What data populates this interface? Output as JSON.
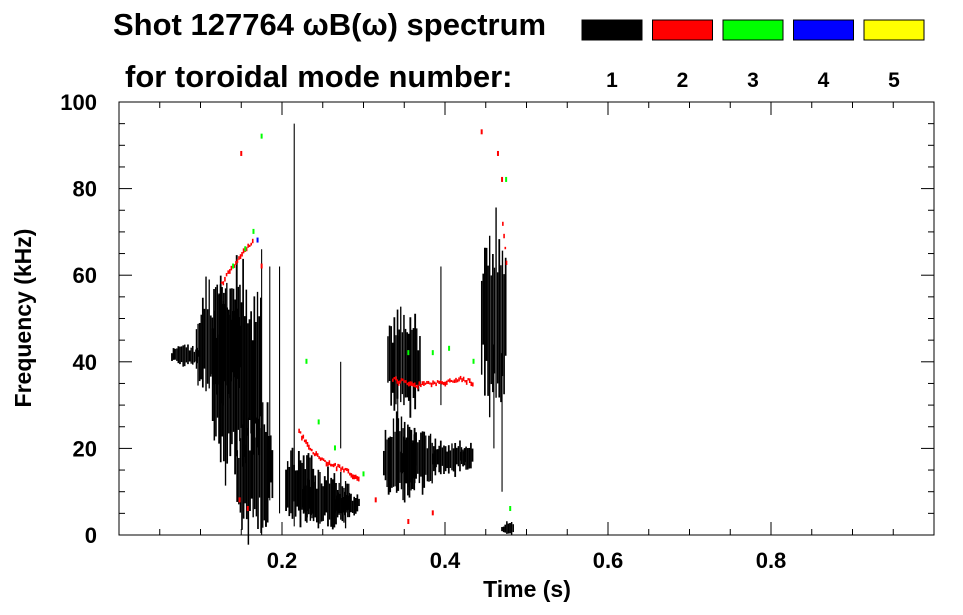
{
  "chart_data": {
    "type": "scatter",
    "title_line1": "Shot 127764 ωB(ω) spectrum",
    "title_line2": "for toroidal mode number:",
    "xlabel": "Time (s)",
    "ylabel": "Frequency (kHz)",
    "xlim": [
      0.0,
      1.0
    ],
    "ylim": [
      0,
      100
    ],
    "x_ticks": [
      0.2,
      0.4,
      0.6,
      0.8
    ],
    "x_tick_labels": [
      "0.2",
      "0.4",
      "0.6",
      "0.8"
    ],
    "y_ticks": [
      0,
      20,
      40,
      60,
      80,
      100
    ],
    "y_tick_labels": [
      "0",
      "20",
      "40",
      "60",
      "80",
      "100"
    ],
    "legend": [
      {
        "label": "1",
        "color": "#000000"
      },
      {
        "label": "2",
        "color": "#ff0000"
      },
      {
        "label": "3",
        "color": "#00ff00"
      },
      {
        "label": "4",
        "color": "#0000ff"
      },
      {
        "label": "5",
        "color": "#ffff00"
      }
    ],
    "series": [
      {
        "name": "n=1",
        "color": "#000000",
        "blobs": [
          {
            "t0": 0.065,
            "t1": 0.1,
            "f0": 39,
            "f1": 44
          },
          {
            "t0": 0.095,
            "t1": 0.15,
            "f0": 30,
            "f1": 58
          },
          {
            "t0": 0.115,
            "t1": 0.175,
            "f0": 12,
            "f1": 63
          },
          {
            "t0": 0.145,
            "t1": 0.19,
            "f0": 0,
            "f1": 30
          },
          {
            "t0": 0.205,
            "t1": 0.24,
            "f0": 2,
            "f1": 20
          },
          {
            "t0": 0.225,
            "t1": 0.285,
            "f0": 1,
            "f1": 15
          },
          {
            "t0": 0.265,
            "t1": 0.295,
            "f0": 4,
            "f1": 10
          },
          {
            "t0": 0.325,
            "t1": 0.365,
            "f0": 8,
            "f1": 27
          },
          {
            "t0": 0.345,
            "t1": 0.39,
            "f0": 10,
            "f1": 25
          },
          {
            "t0": 0.385,
            "t1": 0.425,
            "f0": 14,
            "f1": 22
          },
          {
            "t0": 0.42,
            "t1": 0.435,
            "f0": 15,
            "f1": 21
          },
          {
            "t0": 0.33,
            "t1": 0.37,
            "f0": 28,
            "f1": 52
          },
          {
            "t0": 0.445,
            "t1": 0.475,
            "f0": 28,
            "f1": 72
          },
          {
            "t0": 0.47,
            "t1": 0.485,
            "f0": 0,
            "f1": 3
          }
        ],
        "streaks": [
          {
            "t": 0.175,
            "f0": 0,
            "f1": 66
          },
          {
            "t": 0.185,
            "f0": 8,
            "f1": 62
          },
          {
            "t": 0.197,
            "f0": 5,
            "f1": 62
          },
          {
            "t": 0.215,
            "f0": 2,
            "f1": 95
          },
          {
            "t": 0.272,
            "f0": 20,
            "f1": 40
          },
          {
            "t": 0.342,
            "f0": 25,
            "f1": 46
          },
          {
            "t": 0.395,
            "f0": 30,
            "f1": 62
          },
          {
            "t": 0.46,
            "f0": 20,
            "f1": 44
          },
          {
            "t": 0.47,
            "f0": 10,
            "f1": 42
          }
        ]
      },
      {
        "name": "n=2",
        "color": "#ff0000",
        "trails": [
          {
            "points": [
              [
                0.125,
                58
              ],
              [
                0.135,
                61
              ],
              [
                0.15,
                65
              ],
              [
                0.165,
                68
              ]
            ]
          },
          {
            "points": [
              [
                0.22,
                24
              ],
              [
                0.232,
                20
              ],
              [
                0.25,
                17
              ],
              [
                0.275,
                15
              ],
              [
                0.295,
                13
              ]
            ]
          },
          {
            "points": [
              [
                0.335,
                36
              ],
              [
                0.36,
                34.5
              ],
              [
                0.39,
                35
              ],
              [
                0.42,
                36
              ],
              [
                0.435,
                35
              ]
            ]
          },
          {
            "points": [
              [
                0.47,
                72
              ],
              [
                0.473,
                66
              ],
              [
                0.476,
                60
              ]
            ]
          }
        ],
        "dots": [
          [
            0.15,
            88
          ],
          [
            0.148,
            8
          ],
          [
            0.158,
            6
          ],
          [
            0.175,
            62
          ],
          [
            0.315,
            8
          ],
          [
            0.355,
            3
          ],
          [
            0.385,
            5
          ],
          [
            0.445,
            93
          ],
          [
            0.465,
            88
          ],
          [
            0.47,
            82
          ]
        ]
      },
      {
        "name": "n=3",
        "color": "#00ff00",
        "dots": [
          [
            0.14,
            62
          ],
          [
            0.155,
            66
          ],
          [
            0.165,
            70
          ],
          [
            0.175,
            92
          ],
          [
            0.23,
            40
          ],
          [
            0.245,
            26
          ],
          [
            0.265,
            20
          ],
          [
            0.3,
            14
          ],
          [
            0.355,
            42
          ],
          [
            0.385,
            42
          ],
          [
            0.405,
            43
          ],
          [
            0.435,
            40
          ],
          [
            0.475,
            82
          ],
          [
            0.48,
            6
          ]
        ]
      },
      {
        "name": "n=4",
        "color": "#0000ff",
        "dots": [
          [
            0.17,
            68
          ]
        ]
      }
    ]
  }
}
